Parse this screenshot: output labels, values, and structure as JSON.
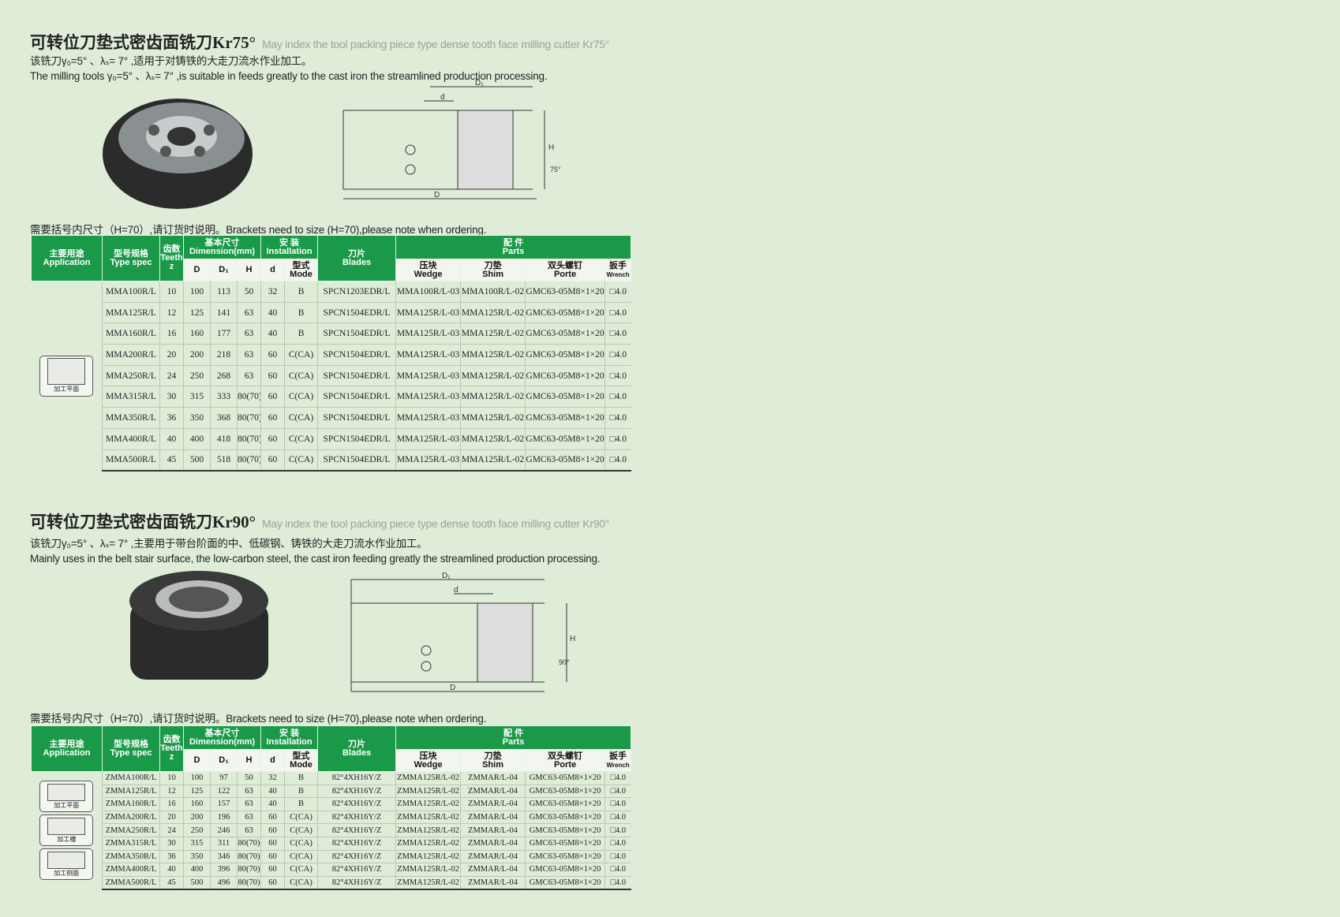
{
  "sections": [
    {
      "title_cn": "可转位刀垫式密齿面铣刀Kr75°",
      "title_en": "May index the tool packing piece type dense tooth face milling cutter Kr75°",
      "desc_cn": "该铣刀γ₀=5° 、λₛ= 7° ,适用于对铸铁的大走刀流水作业加工。",
      "desc_en": "The milling tools γ₀=5° 、λₛ= 7° ,is suitable in feeds greatly to the cast iron the streamlined production processing.",
      "diagram_labels": {
        "D1": "D₁",
        "d": "d",
        "H": "H",
        "angle": "75°",
        "D": "D"
      },
      "note": "需要括号内尺寸（H=70）,请订货时说明。Brackets need to size (H=70),please note when ordering.",
      "applications": [
        "加工平面"
      ],
      "rows": [
        [
          "MMA100R/L",
          "10",
          "100",
          "113",
          "50",
          "32",
          "B",
          "SPCN1203EDR/L",
          "MMA100R/L-03",
          "MMA100R/L-02",
          "GMC63-05M8×1×20",
          "□4.0"
        ],
        [
          "MMA125R/L",
          "12",
          "125",
          "141",
          "63",
          "40",
          "B",
          "SPCN1504EDR/L",
          "MMA125R/L-03",
          "MMA125R/L-02",
          "GMC63-05M8×1×20",
          "□4.0"
        ],
        [
          "MMA160R/L",
          "16",
          "160",
          "177",
          "63",
          "40",
          "B",
          "SPCN1504EDR/L",
          "MMA125R/L-03",
          "MMA125R/L-02",
          "GMC63-05M8×1×20",
          "□4.0"
        ],
        [
          "MMA200R/L",
          "20",
          "200",
          "218",
          "63",
          "60",
          "C(CA)",
          "SPCN1504EDR/L",
          "MMA125R/L-03",
          "MMA125R/L-02",
          "GMC63-05M8×1×20",
          "□4.0"
        ],
        [
          "MMA250R/L",
          "24",
          "250",
          "268",
          "63",
          "60",
          "C(CA)",
          "SPCN1504EDR/L",
          "MMA125R/L-03",
          "MMA125R/L-02",
          "GMC63-05M8×1×20",
          "□4.0"
        ],
        [
          "MMA315R/L",
          "30",
          "315",
          "333",
          "80(70)",
          "60",
          "C(CA)",
          "SPCN1504EDR/L",
          "MMA125R/L-03",
          "MMA125R/L-02",
          "GMC63-05M8×1×20",
          "□4.0"
        ],
        [
          "MMA350R/L",
          "36",
          "350",
          "368",
          "80(70)",
          "60",
          "C(CA)",
          "SPCN1504EDR/L",
          "MMA125R/L-03",
          "MMA125R/L-02",
          "GMC63-05M8×1×20",
          "□4.0"
        ],
        [
          "MMA400R/L",
          "40",
          "400",
          "418",
          "80(70)",
          "60",
          "C(CA)",
          "SPCN1504EDR/L",
          "MMA125R/L-03",
          "MMA125R/L-02",
          "GMC63-05M8×1×20",
          "□4.0"
        ],
        [
          "MMA500R/L",
          "45",
          "500",
          "518",
          "80(70)",
          "60",
          "C(CA)",
          "SPCN1504EDR/L",
          "MMA125R/L-03",
          "MMA125R/L-02",
          "GMC63-05M8×1×20",
          "□4.0"
        ]
      ]
    },
    {
      "title_cn": "可转位刀垫式密齿面铣刀Kr90°",
      "title_en": "May index the tool packing piece type dense tooth face milling cutter Kr90°",
      "desc_cn": "该铣刀γ₀=5° 、λₛ= 7° ,主要用于带台阶面的中、低碳钢、铸铁的大走刀流水作业加工。",
      "desc_en": "Mainly uses in the belt stair surface, the low-carbon steel, the cast iron feeding greatly the streamlined production processing.",
      "diagram_labels": {
        "D1": "D₁",
        "d": "d",
        "H": "H",
        "angle": "90°",
        "D": "D"
      },
      "note": "需要括号内尺寸（H=70）,请订货时说明。Brackets need to size (H=70),please note when ordering.",
      "applications": [
        "加工平面",
        "加工槽",
        "加工侧面"
      ],
      "rows": [
        [
          "ZMMA100R/L",
          "10",
          "100",
          "97",
          "50",
          "32",
          "B",
          "82°4XH16Y/Z",
          "ZMMA125R/L-02",
          "ZMMAR/L-04",
          "GMC63-05M8×1×20",
          "□4.0"
        ],
        [
          "ZMMA125R/L",
          "12",
          "125",
          "122",
          "63",
          "40",
          "B",
          "82°4XH16Y/Z",
          "ZMMA125R/L-02",
          "ZMMAR/L-04",
          "GMC63-05M8×1×20",
          "□4.0"
        ],
        [
          "ZMMA160R/L",
          "16",
          "160",
          "157",
          "63",
          "40",
          "B",
          "82°4XH16Y/Z",
          "ZMMA125R/L-02",
          "ZMMAR/L-04",
          "GMC63-05M8×1×20",
          "□4.0"
        ],
        [
          "ZMMA200R/L",
          "20",
          "200",
          "196",
          "63",
          "60",
          "C(CA)",
          "82°4XH16Y/Z",
          "ZMMA125R/L-02",
          "ZMMAR/L-04",
          "GMC63-05M8×1×20",
          "□4.0"
        ],
        [
          "ZMMA250R/L",
          "24",
          "250",
          "246",
          "63",
          "60",
          "C(CA)",
          "82°4XH16Y/Z",
          "ZMMA125R/L-02",
          "ZMMAR/L-04",
          "GMC63-05M8×1×20",
          "□4.0"
        ],
        [
          "ZMMA315R/L",
          "30",
          "315",
          "311",
          "80(70)",
          "60",
          "C(CA)",
          "82°4XH16Y/Z",
          "ZMMA125R/L-02",
          "ZMMAR/L-04",
          "GMC63-05M8×1×20",
          "□4.0"
        ],
        [
          "ZMMA350R/L",
          "36",
          "350",
          "346",
          "80(70)",
          "60",
          "C(CA)",
          "82°4XH16Y/Z",
          "ZMMA125R/L-02",
          "ZMMAR/L-04",
          "GMC63-05M8×1×20",
          "□4.0"
        ],
        [
          "ZMMA400R/L",
          "40",
          "400",
          "396",
          "80(70)",
          "60",
          "C(CA)",
          "82°4XH16Y/Z",
          "ZMMA125R/L-02",
          "ZMMAR/L-04",
          "GMC63-05M8×1×20",
          "□4.0"
        ],
        [
          "ZMMA500R/L",
          "45",
          "500",
          "496",
          "80(70)",
          "60",
          "C(CA)",
          "82°4XH16Y/Z",
          "ZMMA125R/L-02",
          "ZMMAR/L-04",
          "GMC63-05M8×1×20",
          "□4.0"
        ]
      ]
    }
  ],
  "table_header": {
    "application_cn": "主要用途",
    "application_en": "Application",
    "type_cn": "型号规格",
    "type_en": "Type spec",
    "teeth_cn": "齿数",
    "teeth_en": "Teeth",
    "teeth_sym": "z",
    "dimension_cn": "基本尺寸",
    "dimension_en": "Dimension(mm)",
    "installation_cn": "安 装",
    "installation_en": "Installation",
    "blades_cn": "刀片",
    "blades_en": "Blades",
    "parts_cn": "配 件",
    "parts_en": "Parts",
    "D": "D",
    "D1": "D₁",
    "H": "H",
    "d": "d",
    "mode_cn": "型式",
    "mode_en": "Mode",
    "wedge_cn": "压块",
    "wedge_en": "Wedge",
    "shim_cn": "刀垫",
    "shim_en": "Shim",
    "porte_cn": "双头螺钉",
    "porte_en": "Porte",
    "wrench_cn": "扳手",
    "wrench_en": "Wrench"
  },
  "colors": {
    "header_green": "#1a9a48",
    "background": "#dfedd8"
  }
}
